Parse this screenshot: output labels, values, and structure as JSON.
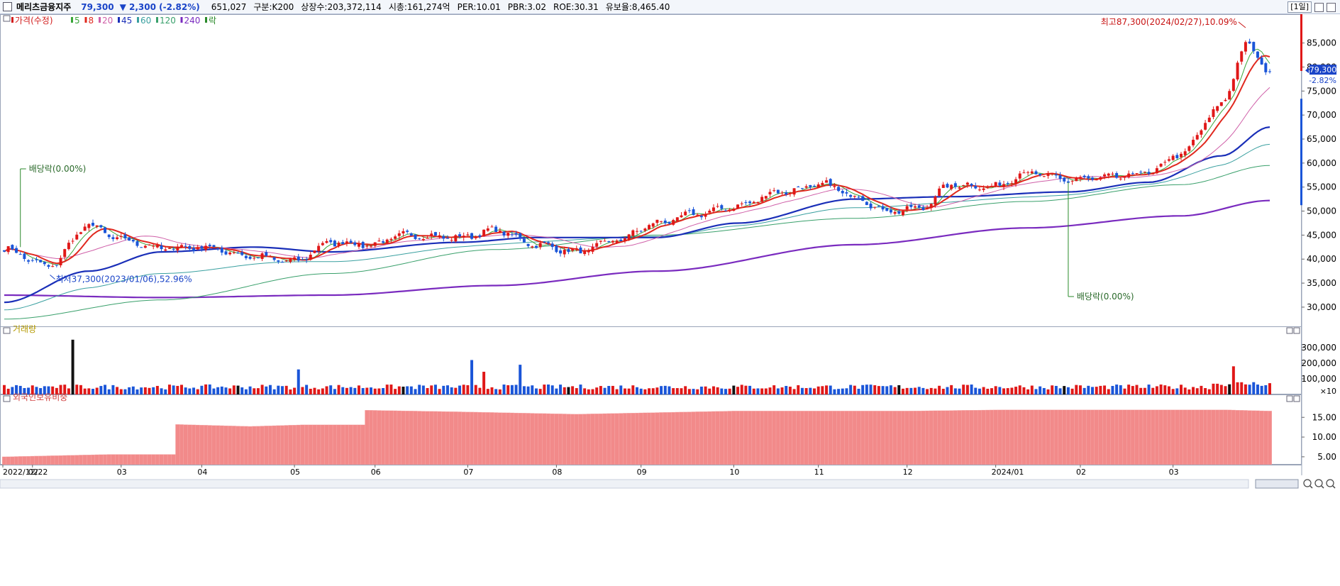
{
  "header": {
    "name": "메리츠금융지주",
    "price": "79,300",
    "change_arrow": "▼",
    "change": "2,300",
    "change_pct": "(-2.82%)",
    "volume": "651,027",
    "market": "구분:K200",
    "listed": "상장수:203,372,114",
    "cap": "시총:161,274억",
    "per": "PER:10.01",
    "pbr": "PBR:3.02",
    "roe": "ROE:30.31",
    "float": "유보율:8,465.40",
    "period": "[1일]"
  },
  "price_legend": [
    {
      "label": "가격(수정)",
      "color": "#d21e1e"
    },
    {
      "label": "5",
      "color": "#3aa63a"
    },
    {
      "label": "8",
      "color": "#e0281e"
    },
    {
      "label": "20",
      "color": "#cf5fa8"
    },
    {
      "label": "45",
      "color": "#1a2fb8"
    },
    {
      "label": "60",
      "color": "#3aa0a0"
    },
    {
      "label": "120",
      "color": "#39a06b"
    },
    {
      "label": "240",
      "color": "#7a2bbf"
    },
    {
      "label": "락",
      "color": "#2a8a2a"
    }
  ],
  "volume_legend": "거래량",
  "foreign_legend": "외국인보유비중",
  "annotations": {
    "high": "최고87,300(2024/02/27),10.09%",
    "low": "최저37,300(2023/01/06),52.96%",
    "div1": "배당락(0.00%)",
    "div2": "배당락(0.00%)",
    "cur_price": "79,300",
    "cur_pct": "-2.82%",
    "vol_unit": "×10"
  },
  "chart_data": [
    {
      "type": "candlestick",
      "title": "가격(수정)",
      "x_range": [
        "2022-12-22",
        "2024-03-06"
      ],
      "y_range": [
        26000,
        91000
      ],
      "y_ticks": [
        30000,
        35000,
        40000,
        45000,
        50000,
        55000,
        60000,
        65000,
        70000,
        75000,
        80000,
        85000
      ],
      "y_tick_labels": [
        "30,000",
        "35,000",
        "40,000",
        "45,000",
        "50,000",
        "55,000",
        "60,000",
        "65,000",
        "70,000",
        "75,000",
        "80,000",
        "85,000"
      ],
      "x_tick_labels": [
        "2022/12/22",
        "02",
        "03",
        "04",
        "05",
        "06",
        "07",
        "08",
        "09",
        "10",
        "11",
        "12",
        "2024/01",
        "02",
        "03"
      ],
      "close_anchors": [
        [
          "2022-12-22",
          42000
        ],
        [
          "2023-01-06",
          38500
        ],
        [
          "2023-01-20",
          47000
        ],
        [
          "2023-02-01",
          44000
        ],
        [
          "2023-02-15",
          42300
        ],
        [
          "2023-03-01",
          42500
        ],
        [
          "2023-03-20",
          40500
        ],
        [
          "2023-04-03",
          39500
        ],
        [
          "2023-04-14",
          43500
        ],
        [
          "2023-04-28",
          43000
        ],
        [
          "2023-05-10",
          45000
        ],
        [
          "2023-05-30",
          44500
        ],
        [
          "2023-06-12",
          46000
        ],
        [
          "2023-06-26",
          43000
        ],
        [
          "2023-07-10",
          41500
        ],
        [
          "2023-07-24",
          44000
        ],
        [
          "2023-08-07",
          47500
        ],
        [
          "2023-08-21",
          49500
        ],
        [
          "2023-09-04",
          51000
        ],
        [
          "2023-09-18",
          54000
        ],
        [
          "2023-10-04",
          55500
        ],
        [
          "2023-10-13",
          53000
        ],
        [
          "2023-10-25",
          50000
        ],
        [
          "2023-11-06",
          50500
        ],
        [
          "2023-11-16",
          55500
        ],
        [
          "2023-11-30",
          55000
        ],
        [
          "2023-12-13",
          58000
        ],
        [
          "2023-12-27",
          56500
        ],
        [
          "2024-01-10",
          57000
        ],
        [
          "2024-01-24",
          58000
        ],
        [
          "2024-02-05",
          62000
        ],
        [
          "2024-02-19",
          72000
        ],
        [
          "2024-02-27",
          84500
        ],
        [
          "2024-03-06",
          79300
        ]
      ],
      "ma45_anchors": [
        [
          "2022-12-22",
          31000
        ],
        [
          "2023-01-20",
          37500
        ],
        [
          "2023-02-15",
          41500
        ],
        [
          "2023-03-20",
          42500
        ],
        [
          "2023-04-14",
          41500
        ],
        [
          "2023-05-30",
          43500
        ],
        [
          "2023-06-26",
          44500
        ],
        [
          "2023-08-07",
          44500
        ],
        [
          "2023-09-04",
          47500
        ],
        [
          "2023-10-13",
          52500
        ],
        [
          "2023-11-16",
          53000
        ],
        [
          "2023-12-27",
          54000
        ],
        [
          "2024-01-24",
          56000
        ],
        [
          "2024-02-19",
          61500
        ],
        [
          "2024-03-06",
          67500
        ]
      ],
      "ma120_anchors": [
        [
          "2022-12-22",
          27500
        ],
        [
          "2023-02-15",
          31500
        ],
        [
          "2023-04-14",
          37000
        ],
        [
          "2023-06-12",
          42000
        ],
        [
          "2023-08-07",
          45000
        ],
        [
          "2023-10-13",
          48500
        ],
        [
          "2023-12-13",
          52000
        ],
        [
          "2024-02-05",
          55500
        ],
        [
          "2024-03-06",
          59500
        ]
      ],
      "ma240_anchors": [
        [
          "2022-12-22",
          32500
        ],
        [
          "2023-02-15",
          32000
        ],
        [
          "2023-04-14",
          32500
        ],
        [
          "2023-06-12",
          34500
        ],
        [
          "2023-08-07",
          37500
        ],
        [
          "2023-10-13",
          43000
        ],
        [
          "2023-12-13",
          46500
        ],
        [
          "2024-02-05",
          49000
        ],
        [
          "2024-03-06",
          52200
        ]
      ],
      "high": {
        "date": "2024-02-27",
        "value": 87300
      },
      "low": {
        "date": "2023-01-06",
        "value": 37300
      },
      "ex_dividend": [
        "2022-12-28",
        "2023-12-27"
      ]
    },
    {
      "type": "bar",
      "title": "거래량",
      "y_ticks": [
        100000,
        200000,
        300000
      ],
      "y_tick_labels": [
        "100,000",
        "200,000",
        "300,000"
      ],
      "y_range": [
        0,
        390000
      ],
      "spikes": [
        [
          "2023-01-16",
          350000
        ],
        [
          "2023-06-02",
          220000
        ],
        [
          "2023-06-07",
          145000
        ],
        [
          "2023-06-20",
          190000
        ],
        [
          "2023-04-04",
          160000
        ],
        [
          "2024-02-22",
          180000
        ]
      ]
    },
    {
      "type": "bar",
      "title": "외국인보유비중",
      "y_ticks": [
        5,
        10,
        15
      ],
      "y_tick_labels": [
        "5.00",
        "10.00",
        "15.00"
      ],
      "y_range": [
        3,
        19
      ],
      "step_anchors": [
        [
          "2022-12-22",
          5.0
        ],
        [
          "2023-01-27",
          5.6
        ],
        [
          "2023-02-21",
          13.2
        ],
        [
          "2023-03-17",
          12.7
        ],
        [
          "2023-04-05",
          13.1
        ],
        [
          "2023-04-27",
          16.8
        ],
        [
          "2023-05-30",
          16.4
        ],
        [
          "2023-07-10",
          15.8
        ],
        [
          "2023-09-01",
          16.6
        ],
        [
          "2023-11-01",
          16.6
        ],
        [
          "2023-12-05",
          16.9
        ],
        [
          "2024-02-20",
          16.9
        ],
        [
          "2024-03-06",
          16.6
        ]
      ]
    }
  ]
}
